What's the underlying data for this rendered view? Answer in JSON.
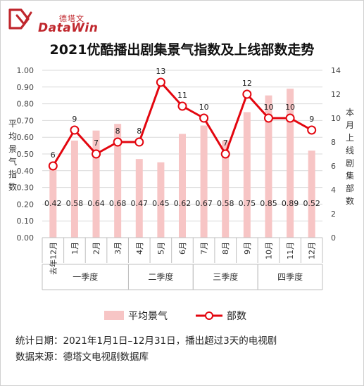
{
  "brand": {
    "name_cn": "德塔文",
    "name_en": "DataWin",
    "logo_color": "#c0272d"
  },
  "title": "2021优酷播出剧集景气指数及上线部数走势",
  "chart_data": {
    "type": "bar+line",
    "categories": [
      "去年12月",
      "1月",
      "2月",
      "3月",
      "4月",
      "5月",
      "6月",
      "7月",
      "8月",
      "9月",
      "10月",
      "11月",
      "12月"
    ],
    "groups": [
      {
        "label": "一季度",
        "from": 0,
        "to": 3
      },
      {
        "label": "二季度",
        "from": 4,
        "to": 6
      },
      {
        "label": "三季度",
        "from": 7,
        "to": 9
      },
      {
        "label": "四季度",
        "from": 10,
        "to": 12
      }
    ],
    "series": [
      {
        "name": "平均景气",
        "type": "bar",
        "axis": "left",
        "color": "#f7c5c5",
        "values": [
          0.42,
          0.58,
          0.64,
          0.68,
          0.47,
          0.45,
          0.62,
          0.67,
          0.58,
          0.75,
          0.85,
          0.89,
          0.52
        ],
        "labels": [
          "0.42",
          "0.58",
          "0.64",
          "0.68",
          "0.47",
          "0.45",
          "0.62",
          "0.67",
          "0.58",
          "0.75",
          "0.85",
          "0.89",
          "0.52"
        ]
      },
      {
        "name": "部数",
        "type": "line",
        "axis": "right",
        "color": "#e3060f",
        "values": [
          6,
          9,
          7,
          8,
          8,
          13,
          11,
          10,
          7,
          12,
          10,
          10,
          9
        ]
      }
    ],
    "y_left": {
      "label": "平均景气指数",
      "min": 0,
      "max": 1.0,
      "ticks": [
        "0.00",
        "0.10",
        "0.20",
        "0.30",
        "0.40",
        "0.50",
        "0.60",
        "0.70",
        "0.80",
        "0.90",
        "1.00"
      ]
    },
    "y_right": {
      "label": "本月上线剧集部数",
      "min": 0,
      "max": 14,
      "ticks": [
        "0",
        "2",
        "4",
        "6",
        "8",
        "10",
        "12",
        "14"
      ]
    },
    "grid": true,
    "legend_position": "bottom"
  },
  "footer": {
    "line1": "统计日期：2021年1月1日–12月31日，播出超过3天的电视剧",
    "line2": "数据来源：德塔文电视剧数据库"
  }
}
